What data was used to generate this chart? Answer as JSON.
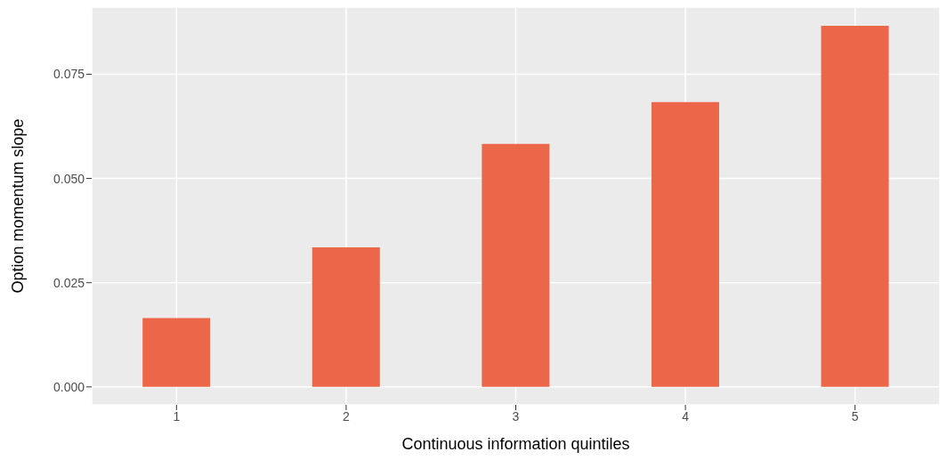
{
  "chart_data": {
    "type": "bar",
    "xlabel": "Continuous information quintiles",
    "ylabel": "Option momentum slope",
    "categories": [
      "1",
      "2",
      "3",
      "4",
      "5"
    ],
    "values": [
      0.0165,
      0.0335,
      0.0583,
      0.0683,
      0.0866
    ],
    "color": "#ec664a",
    "ylim": [
      -0.0043,
      0.0911
    ],
    "yticks": [
      {
        "value": 0,
        "label": "0.000"
      },
      {
        "value": 0.025,
        "label": "0.025"
      },
      {
        "value": 0.05,
        "label": "0.050"
      },
      {
        "value": 0.075,
        "label": "0.075"
      }
    ],
    "grid": true
  }
}
